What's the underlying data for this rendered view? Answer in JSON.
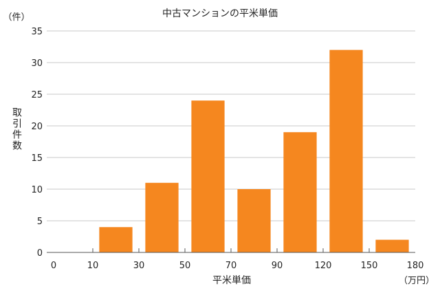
{
  "chart_data": {
    "type": "bar",
    "title": "中古マンションの平米単価",
    "ylabel": "取引件数",
    "yunit": "（件）",
    "xlabel": "平米単価",
    "xunit": "（万円）",
    "ylim": [
      0,
      35
    ],
    "yticks": [
      0,
      5,
      10,
      15,
      20,
      25,
      30,
      35
    ],
    "xticks": [
      0,
      10,
      30,
      50,
      70,
      90,
      120,
      150,
      180
    ],
    "bars": [
      {
        "bin": "10–30",
        "value": 4
      },
      {
        "bin": "30–50",
        "value": 11
      },
      {
        "bin": "50–70",
        "value": 24
      },
      {
        "bin": "70–90",
        "value": 10
      },
      {
        "bin": "90–120",
        "value": 19
      },
      {
        "bin": "120–150",
        "value": 32
      },
      {
        "bin": "150–180",
        "value": 2
      }
    ],
    "bar_color": "#F5871F",
    "grid": true,
    "legend": "none"
  }
}
